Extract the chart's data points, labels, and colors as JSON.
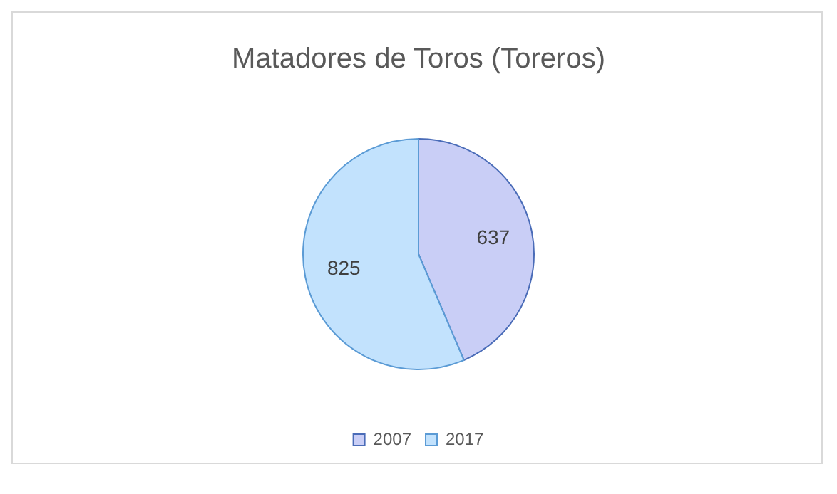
{
  "chart_data": {
    "type": "pie",
    "title": "Matadores de Toros (Toreros)",
    "categories": [
      "2007",
      "2017"
    ],
    "values": [
      637,
      825
    ],
    "colors": [
      "#c9cef6",
      "#c2e2fd"
    ],
    "data_labels": true,
    "legend": "bottom"
  }
}
